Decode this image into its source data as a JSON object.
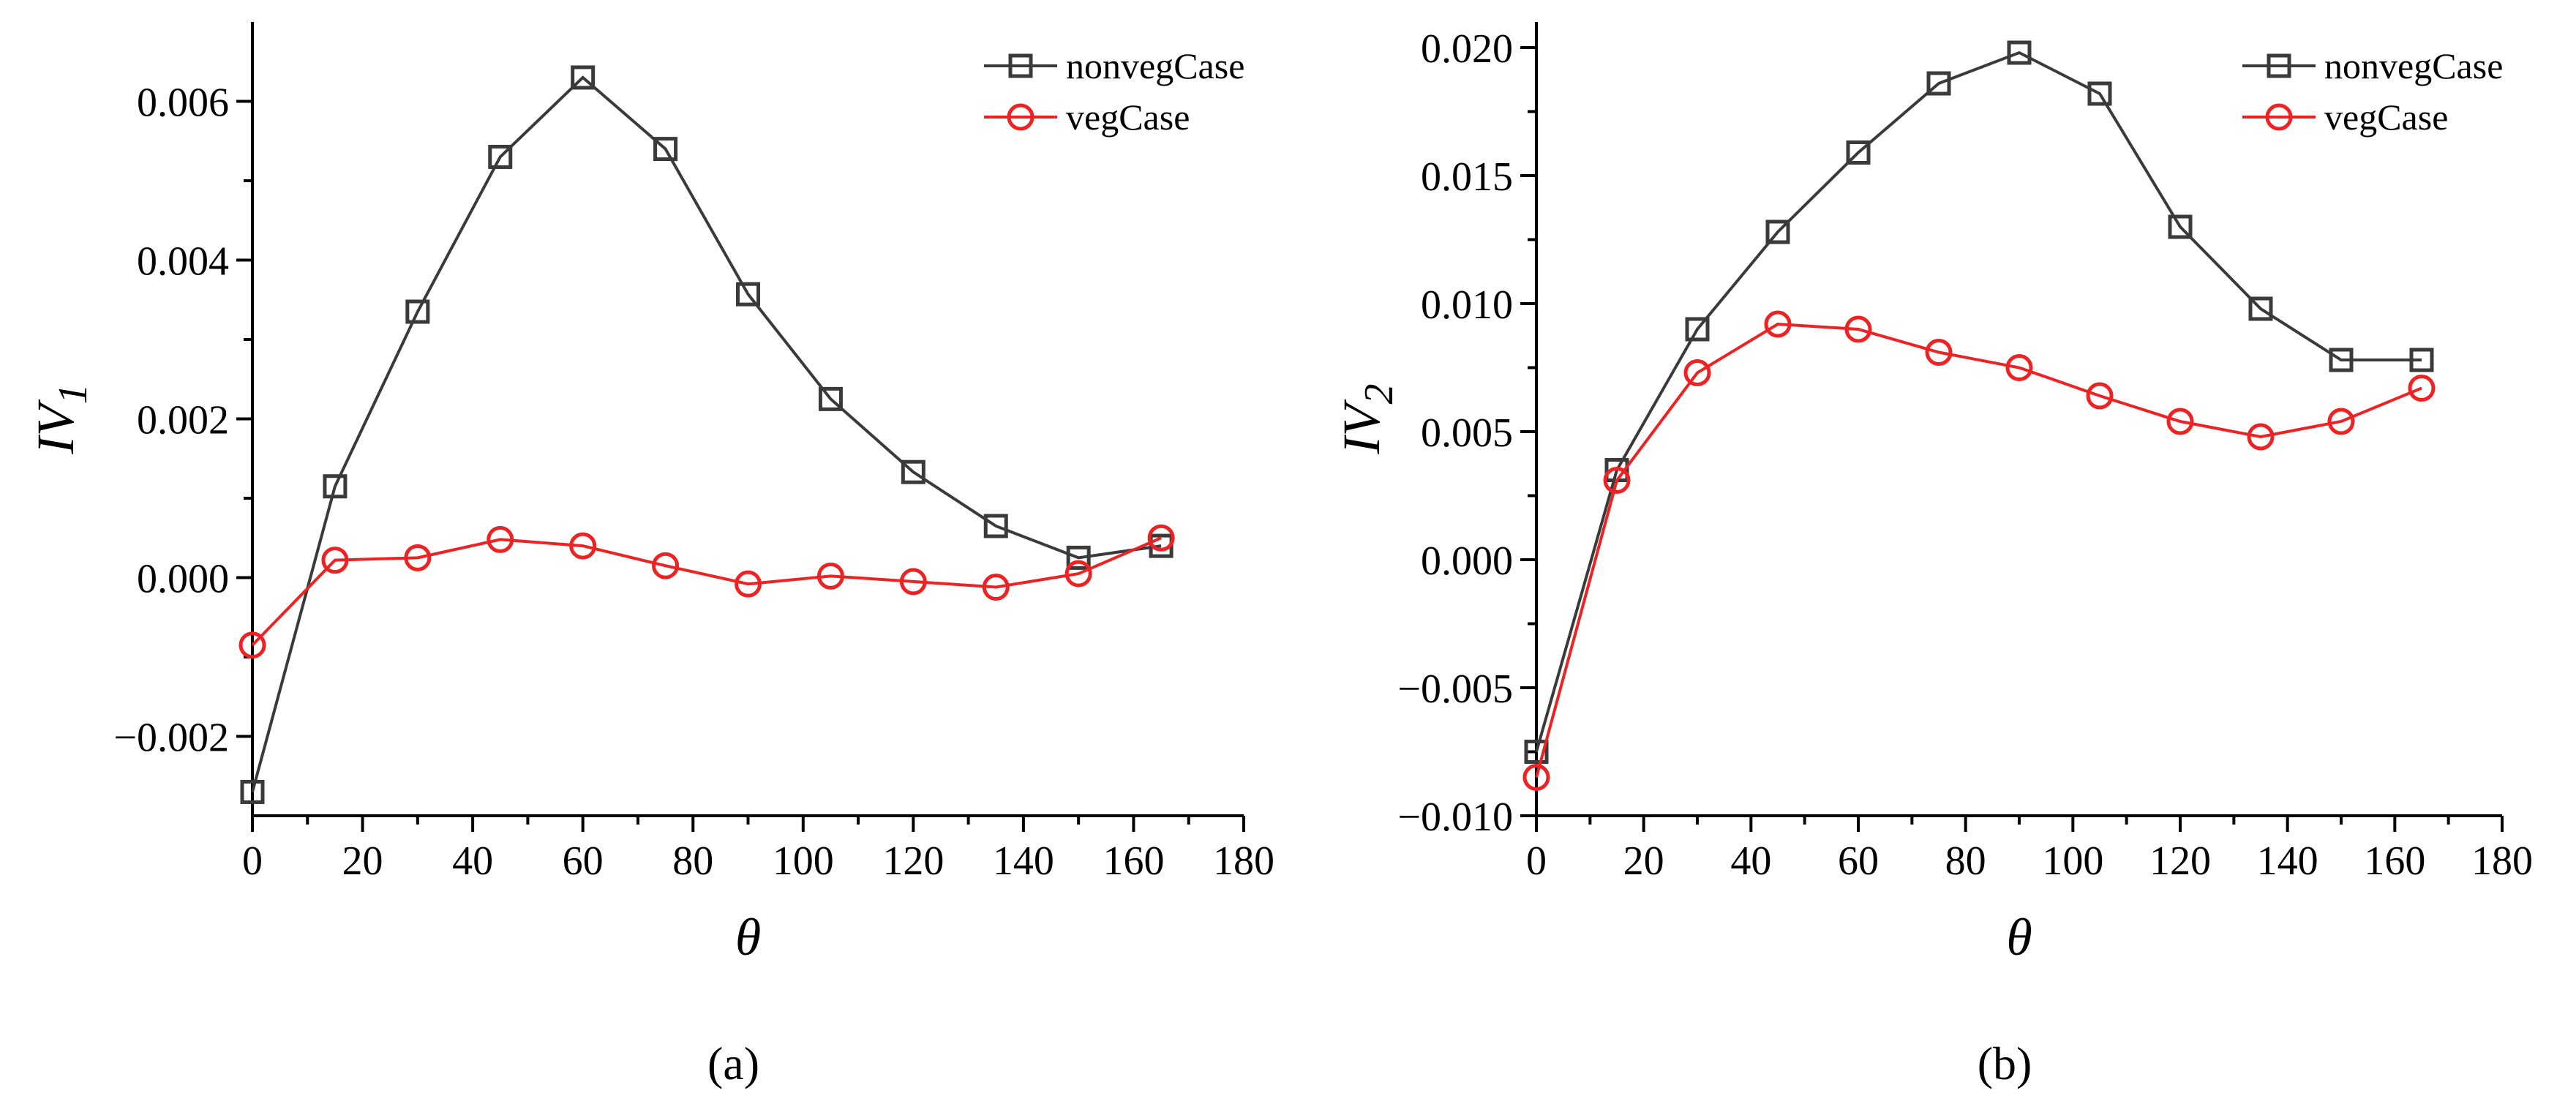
{
  "chart_data": [
    {
      "type": "line",
      "panel_label": "(a)",
      "xlabel": "θ",
      "ylabel_base": "IV",
      "ylabel_sub": "1",
      "xlim": [
        0,
        180
      ],
      "ylim": [
        -0.003,
        0.007
      ],
      "xticks": [
        0,
        20,
        40,
        60,
        80,
        100,
        120,
        140,
        160,
        180
      ],
      "yticks": [
        -0.002,
        0.0,
        0.002,
        0.004,
        0.006
      ],
      "ytick_labels": [
        "−0.002",
        "0.000",
        "0.002",
        "0.004",
        "0.006"
      ],
      "x": [
        0,
        15,
        30,
        45,
        60,
        75,
        90,
        105,
        120,
        135,
        150,
        165
      ],
      "series": [
        {
          "name": "nonvegCase",
          "marker": "square",
          "color": "#3a3a3a",
          "values": [
            -0.0027,
            0.00115,
            0.00335,
            0.0053,
            0.0063,
            0.0054,
            0.00357,
            0.00225,
            0.00133,
            0.00065,
            0.00025,
            0.0004
          ]
        },
        {
          "name": "vegCase",
          "marker": "circle",
          "color": "#ee2222",
          "values": [
            -0.00085,
            0.00022,
            0.00025,
            0.00048,
            0.0004,
            0.00015,
            -8e-05,
            2e-05,
            -5e-05,
            -0.00012,
            5e-05,
            0.0005
          ]
        }
      ],
      "legend": "top-right"
    },
    {
      "type": "line",
      "panel_label": "(b)",
      "xlabel": "θ",
      "ylabel_base": "IV",
      "ylabel_sub": "2",
      "xlim": [
        0,
        180
      ],
      "ylim": [
        -0.01,
        0.021
      ],
      "xticks": [
        0,
        20,
        40,
        60,
        80,
        100,
        120,
        140,
        160,
        180
      ],
      "yticks": [
        -0.01,
        -0.005,
        0.0,
        0.005,
        0.01,
        0.015,
        0.02
      ],
      "ytick_labels": [
        "−0.010",
        "−0.005",
        "0.000",
        "0.005",
        "0.010",
        "0.015",
        "0.020"
      ],
      "x": [
        0,
        15,
        30,
        45,
        60,
        75,
        90,
        105,
        120,
        135,
        150,
        165
      ],
      "series": [
        {
          "name": "nonvegCase",
          "marker": "square",
          "color": "#3a3a3a",
          "values": [
            -0.0075,
            0.0035,
            0.009,
            0.0128,
            0.0159,
            0.0186,
            0.0198,
            0.0182,
            0.013,
            0.0098,
            0.0078,
            0.0078
          ]
        },
        {
          "name": "vegCase",
          "marker": "circle",
          "color": "#ee2222",
          "values": [
            -0.0085,
            0.0031,
            0.0073,
            0.0092,
            0.009,
            0.0081,
            0.0075,
            0.0064,
            0.0054,
            0.0048,
            0.0054,
            0.0067
          ]
        }
      ],
      "legend": "top-right"
    }
  ]
}
